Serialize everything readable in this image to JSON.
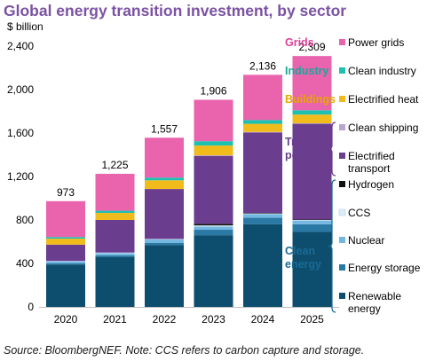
{
  "title": "Global energy transition investment, by sector",
  "source": "Source: BloombergNEF. Note: CCS refers to carbon capture and storage.",
  "chart_data": {
    "type": "bar",
    "stacked": true,
    "unit_label": "$ billion",
    "ylim": [
      0,
      2400
    ],
    "yticks": [
      "0",
      "400",
      "800",
      "1,200",
      "1,600",
      "2,000",
      "2,400"
    ],
    "categories": [
      "2020",
      "2021",
      "2022",
      "2023",
      "2024",
      "2025"
    ],
    "totals": [
      "973",
      "1,225",
      "1,557",
      "1,906",
      "2,136",
      "2,309"
    ],
    "series": [
      {
        "name": "Renewable energy",
        "color": "#0d4e6e",
        "values": [
          390,
          460,
          570,
          660,
          760,
          690
        ]
      },
      {
        "name": "Energy storage",
        "color": "#2a79a4",
        "values": [
          10,
          15,
          20,
          50,
          60,
          70
        ]
      },
      {
        "name": "Nuclear",
        "color": "#74b8e2",
        "values": [
          20,
          20,
          30,
          30,
          35,
          35
        ]
      },
      {
        "name": "CCS",
        "color": "#dbeef8",
        "values": [
          3,
          5,
          5,
          10,
          5,
          5
        ]
      },
      {
        "name": "Hydrogen",
        "color": "#111111",
        "values": [
          0,
          0,
          0,
          15,
          5,
          5
        ]
      },
      {
        "name": "Electrified transport",
        "color": "#6a3d8f",
        "values": [
          150,
          300,
          460,
          625,
          740,
          880
        ]
      },
      {
        "name": "Clean shipping",
        "color": "#b8a6d4",
        "values": [
          0,
          0,
          0,
          5,
          5,
          5
        ]
      },
      {
        "name": "Electrified heat",
        "color": "#f2bb1c",
        "values": [
          55,
          65,
          80,
          90,
          75,
          80
        ]
      },
      {
        "name": "Clean industry",
        "color": "#1ec0b0",
        "values": [
          15,
          20,
          25,
          40,
          35,
          40
        ]
      },
      {
        "name": "Power grids",
        "color": "#e963ad",
        "values": [
          330,
          340,
          367,
          381,
          416,
          499
        ]
      }
    ],
    "legend": {
      "groups": [
        {
          "label": "Grids",
          "color": "#e0409a",
          "items": [
            "Power grids"
          ]
        },
        {
          "label": "Industry",
          "color": "#18a898",
          "items": [
            "Clean industry"
          ]
        },
        {
          "label": "Buildings",
          "color": "#e6a800",
          "items": [
            "Electrified heat"
          ]
        },
        {
          "label": "Trans-port",
          "color": "#6a3d8f",
          "items": [
            "Clean shipping",
            "Electrified transport"
          ]
        },
        {
          "label": "Clean energy",
          "color": "#1a6a96",
          "items": [
            "Hydrogen",
            "CCS",
            "Nuclear",
            "Energy storage",
            "Renewable energy"
          ]
        }
      ]
    }
  }
}
